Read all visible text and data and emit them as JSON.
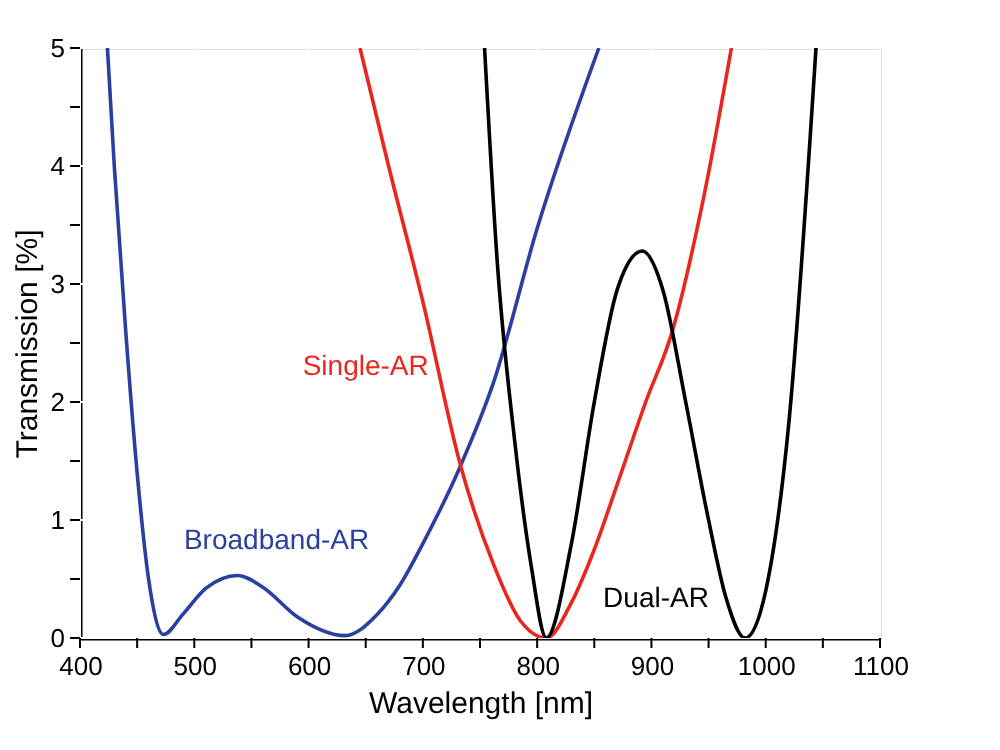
{
  "chart_data": {
    "type": "line",
    "xlabel": "Wavelength [nm]",
    "ylabel": "Transmission [%]",
    "xlim": [
      400,
      1100
    ],
    "ylim": [
      0,
      5
    ],
    "xticks": [
      400,
      {
        "value": 450,
        "label": null
      },
      500,
      {
        "value": 550,
        "label": null
      },
      600,
      {
        "value": 650,
        "label": null
      },
      700,
      {
        "value": 750,
        "label": null
      },
      800,
      {
        "value": 850,
        "label": null
      },
      900,
      {
        "value": 950,
        "label": null
      },
      1000,
      {
        "value": 1050,
        "label": null
      },
      1100
    ],
    "yticks": [
      0,
      {
        "value": 0.5,
        "label": null
      },
      1,
      {
        "value": 1.5,
        "label": null
      },
      2,
      {
        "value": 2.5,
        "label": null
      },
      3,
      {
        "value": 3.5,
        "label": null
      },
      4,
      {
        "value": 4.5,
        "label": null
      },
      5
    ],
    "grid": true,
    "marker": "none",
    "line_style": "solid",
    "series": [
      {
        "name": "Broadband-AR",
        "color": "#2b3f9e",
        "x": [
          424,
          430,
          440,
          450,
          460,
          473,
          490,
          510,
          538,
          560,
          590,
          632,
          660,
          680,
          700,
          733,
          762,
          800,
          854
        ],
        "values": [
          5,
          4.0,
          2.6,
          1.4,
          0.5,
          0.03,
          0.2,
          0.42,
          0.53,
          0.43,
          0.18,
          0.02,
          0.2,
          0.45,
          0.8,
          1.46,
          2.17,
          3.47,
          5
        ]
      },
      {
        "name": "Single-AR",
        "color": "#e8281e",
        "x": [
          645,
          670,
          700,
          733,
          762,
          785,
          808,
          830,
          850,
          870,
          895,
          918,
          945,
          970
        ],
        "values": [
          5,
          4.0,
          2.85,
          1.46,
          0.62,
          0.15,
          0,
          0.3,
          0.75,
          1.3,
          2.0,
          2.59,
          3.7,
          5
        ]
      },
      {
        "name": "Dual-AR",
        "color": "#000000",
        "x": [
          754,
          765,
          780,
          795,
          808,
          830,
          850,
          870,
          892,
          910,
          930,
          950,
          965,
          982,
          1000,
          1020,
          1044
        ],
        "values": [
          5,
          3.2,
          1.7,
          0.6,
          0,
          0.8,
          2.0,
          2.95,
          3.28,
          2.95,
          2.0,
          1.0,
          0.35,
          0,
          0.4,
          1.8,
          5
        ]
      }
    ]
  }
}
